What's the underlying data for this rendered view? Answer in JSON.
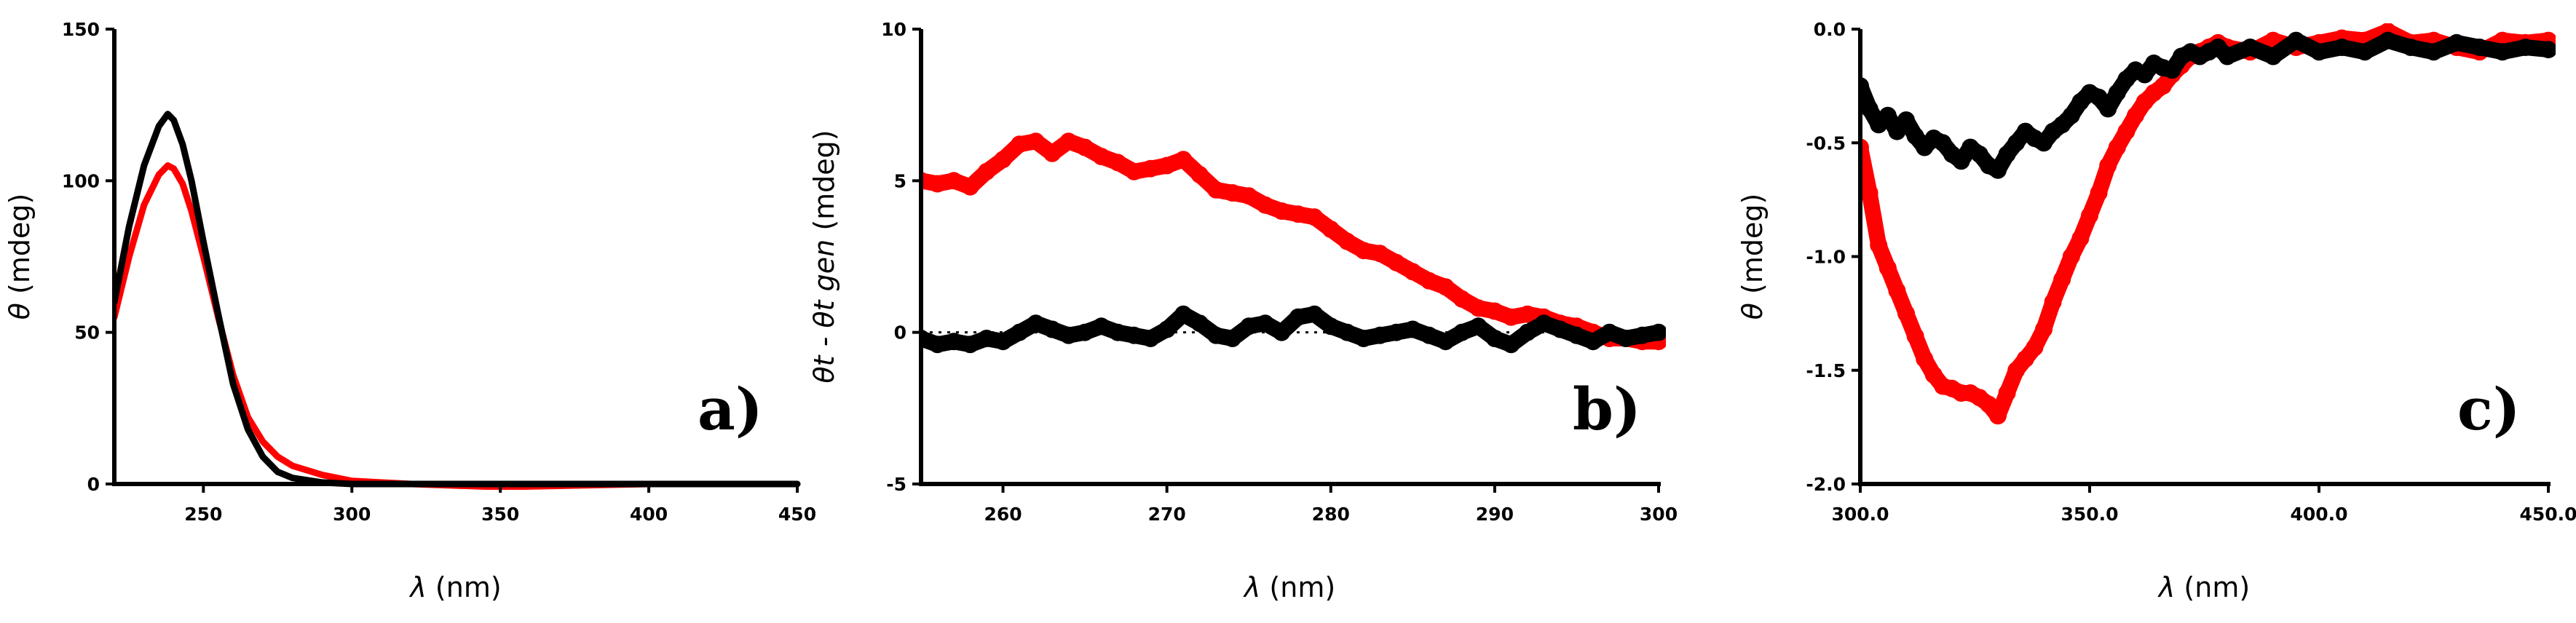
{
  "figure": {
    "background": "#ffffff"
  },
  "chart_data": [
    {
      "type": "line",
      "panel_label": "a)",
      "xlabel_symbol": "λ",
      "xlabel_unit": "(nm)",
      "ylabel_symbol": "θ",
      "ylabel_unit": "(mdeg)",
      "xlim": [
        220,
        450
      ],
      "ylim": [
        0,
        150
      ],
      "xticks": [
        250,
        300,
        350,
        400,
        450
      ],
      "yticks": [
        0,
        50,
        100,
        150
      ],
      "grid": false,
      "series": [
        {
          "color": "#ff0000",
          "style": "line",
          "x": [
            220,
            225,
            230,
            235,
            238,
            240,
            243,
            246,
            250,
            255,
            260,
            265,
            270,
            275,
            280,
            290,
            300,
            320,
            350,
            400,
            450
          ],
          "y": [
            55,
            75,
            92,
            102,
            105,
            104,
            99,
            90,
            75,
            55,
            36,
            22,
            14,
            9,
            6,
            3,
            1,
            0,
            -1,
            0,
            0
          ]
        },
        {
          "color": "#000000",
          "style": "line",
          "x": [
            220,
            225,
            230,
            235,
            238,
            240,
            243,
            246,
            250,
            255,
            260,
            265,
            270,
            275,
            280,
            290,
            300,
            320,
            350,
            400,
            450
          ],
          "y": [
            60,
            85,
            105,
            118,
            122,
            120,
            112,
            100,
            80,
            56,
            33,
            18,
            9,
            4,
            2,
            0.5,
            0,
            0,
            0,
            0,
            0
          ]
        }
      ]
    },
    {
      "type": "scatter",
      "panel_label": "b)",
      "xlabel_symbol": "λ",
      "xlabel_unit": "(nm)",
      "ylabel_text": "θt - θt gen",
      "ylabel_unit": "(mdeg)",
      "xlim": [
        255,
        300
      ],
      "ylim": [
        -5,
        10
      ],
      "xticks": [
        260,
        270,
        280,
        290,
        300
      ],
      "yticks": [
        -5,
        0,
        5,
        10
      ],
      "grid": false,
      "zero_line": "dotted",
      "series": [
        {
          "color": "#ff0000",
          "style": "markers",
          "x": [
            255,
            256,
            257,
            258,
            259,
            260,
            261,
            262,
            263,
            264,
            265,
            266,
            267,
            268,
            269,
            270,
            271,
            272,
            273,
            274,
            275,
            276,
            277,
            278,
            279,
            280,
            281,
            282,
            283,
            284,
            285,
            286,
            287,
            288,
            289,
            290,
            291,
            292,
            293,
            294,
            295,
            296,
            297,
            298,
            299,
            300
          ],
          "y": [
            5.0,
            4.9,
            5.0,
            4.8,
            5.3,
            5.7,
            6.2,
            6.3,
            5.9,
            6.3,
            6.1,
            5.8,
            5.6,
            5.3,
            5.4,
            5.5,
            5.7,
            5.2,
            4.7,
            4.6,
            4.5,
            4.2,
            4.0,
            3.9,
            3.8,
            3.4,
            3.0,
            2.7,
            2.6,
            2.3,
            2.0,
            1.7,
            1.5,
            1.1,
            0.8,
            0.7,
            0.5,
            0.6,
            0.5,
            0.3,
            0.2,
            0.0,
            -0.2,
            -0.2,
            -0.3,
            -0.3
          ]
        },
        {
          "color": "#000000",
          "style": "markers",
          "x": [
            255,
            256,
            257,
            258,
            259,
            260,
            261,
            262,
            263,
            264,
            265,
            266,
            267,
            268,
            269,
            270,
            271,
            272,
            273,
            274,
            275,
            276,
            277,
            278,
            279,
            280,
            281,
            282,
            283,
            284,
            285,
            286,
            287,
            288,
            289,
            290,
            291,
            292,
            293,
            294,
            295,
            296,
            297,
            298,
            299,
            300
          ],
          "y": [
            -0.2,
            -0.4,
            -0.3,
            -0.4,
            -0.2,
            -0.3,
            0.0,
            0.3,
            0.1,
            -0.1,
            0.0,
            0.2,
            0.0,
            -0.1,
            -0.2,
            0.1,
            0.6,
            0.3,
            -0.1,
            -0.2,
            0.2,
            0.3,
            0.0,
            0.5,
            0.6,
            0.2,
            0.0,
            -0.2,
            -0.1,
            0.0,
            0.1,
            -0.1,
            -0.3,
            0.0,
            0.2,
            -0.2,
            -0.4,
            0.0,
            0.3,
            0.1,
            -0.1,
            -0.3,
            0.0,
            -0.2,
            -0.1,
            0.0
          ]
        }
      ]
    },
    {
      "type": "scatter",
      "panel_label": "c)",
      "xlabel_symbol": "λ",
      "xlabel_unit": "(nm)",
      "ylabel_symbol": "θ",
      "ylabel_unit": "(mdeg)",
      "xlim": [
        300,
        450
      ],
      "ylim": [
        -2.0,
        0.0
      ],
      "xticks": [
        300,
        350,
        400,
        450
      ],
      "yticks": [
        -2.0,
        -1.5,
        -1.0,
        -0.5,
        0.0
      ],
      "grid": false,
      "series": [
        {
          "color": "#ff0000",
          "style": "markers",
          "x": [
            300,
            302,
            304,
            306,
            308,
            310,
            312,
            314,
            316,
            318,
            320,
            322,
            324,
            326,
            328,
            330,
            332,
            334,
            336,
            338,
            340,
            342,
            344,
            346,
            348,
            350,
            352,
            354,
            356,
            358,
            360,
            362,
            364,
            366,
            368,
            370,
            372,
            374,
            376,
            378,
            380,
            385,
            390,
            395,
            400,
            405,
            410,
            415,
            420,
            425,
            430,
            435,
            440,
            445,
            450
          ],
          "y": [
            -0.52,
            -0.72,
            -0.95,
            -1.05,
            -1.15,
            -1.25,
            -1.35,
            -1.45,
            -1.52,
            -1.57,
            -1.58,
            -1.6,
            -1.6,
            -1.62,
            -1.65,
            -1.7,
            -1.6,
            -1.5,
            -1.45,
            -1.4,
            -1.32,
            -1.2,
            -1.1,
            -1.0,
            -0.92,
            -0.82,
            -0.72,
            -0.6,
            -0.52,
            -0.45,
            -0.38,
            -0.32,
            -0.28,
            -0.25,
            -0.2,
            -0.16,
            -0.12,
            -0.1,
            -0.08,
            -0.06,
            -0.08,
            -0.1,
            -0.05,
            -0.08,
            -0.06,
            -0.04,
            -0.05,
            -0.01,
            -0.06,
            -0.05,
            -0.08,
            -0.1,
            -0.05,
            -0.06,
            -0.05
          ]
        },
        {
          "color": "#000000",
          "style": "markers",
          "x": [
            300,
            302,
            304,
            306,
            308,
            310,
            312,
            314,
            316,
            318,
            320,
            322,
            324,
            326,
            328,
            330,
            332,
            334,
            336,
            338,
            340,
            342,
            344,
            346,
            348,
            350,
            352,
            354,
            356,
            358,
            360,
            362,
            364,
            366,
            368,
            370,
            372,
            374,
            376,
            378,
            380,
            385,
            390,
            395,
            400,
            405,
            410,
            415,
            420,
            425,
            430,
            435,
            440,
            445,
            450
          ],
          "y": [
            -0.25,
            -0.35,
            -0.42,
            -0.38,
            -0.45,
            -0.4,
            -0.47,
            -0.52,
            -0.48,
            -0.5,
            -0.55,
            -0.58,
            -0.52,
            -0.55,
            -0.6,
            -0.62,
            -0.55,
            -0.5,
            -0.45,
            -0.48,
            -0.5,
            -0.45,
            -0.42,
            -0.38,
            -0.32,
            -0.28,
            -0.3,
            -0.35,
            -0.28,
            -0.22,
            -0.18,
            -0.2,
            -0.15,
            -0.17,
            -0.18,
            -0.12,
            -0.1,
            -0.12,
            -0.1,
            -0.08,
            -0.12,
            -0.08,
            -0.12,
            -0.05,
            -0.1,
            -0.08,
            -0.1,
            -0.05,
            -0.08,
            -0.1,
            -0.06,
            -0.08,
            -0.1,
            -0.08,
            -0.09
          ]
        }
      ]
    }
  ]
}
